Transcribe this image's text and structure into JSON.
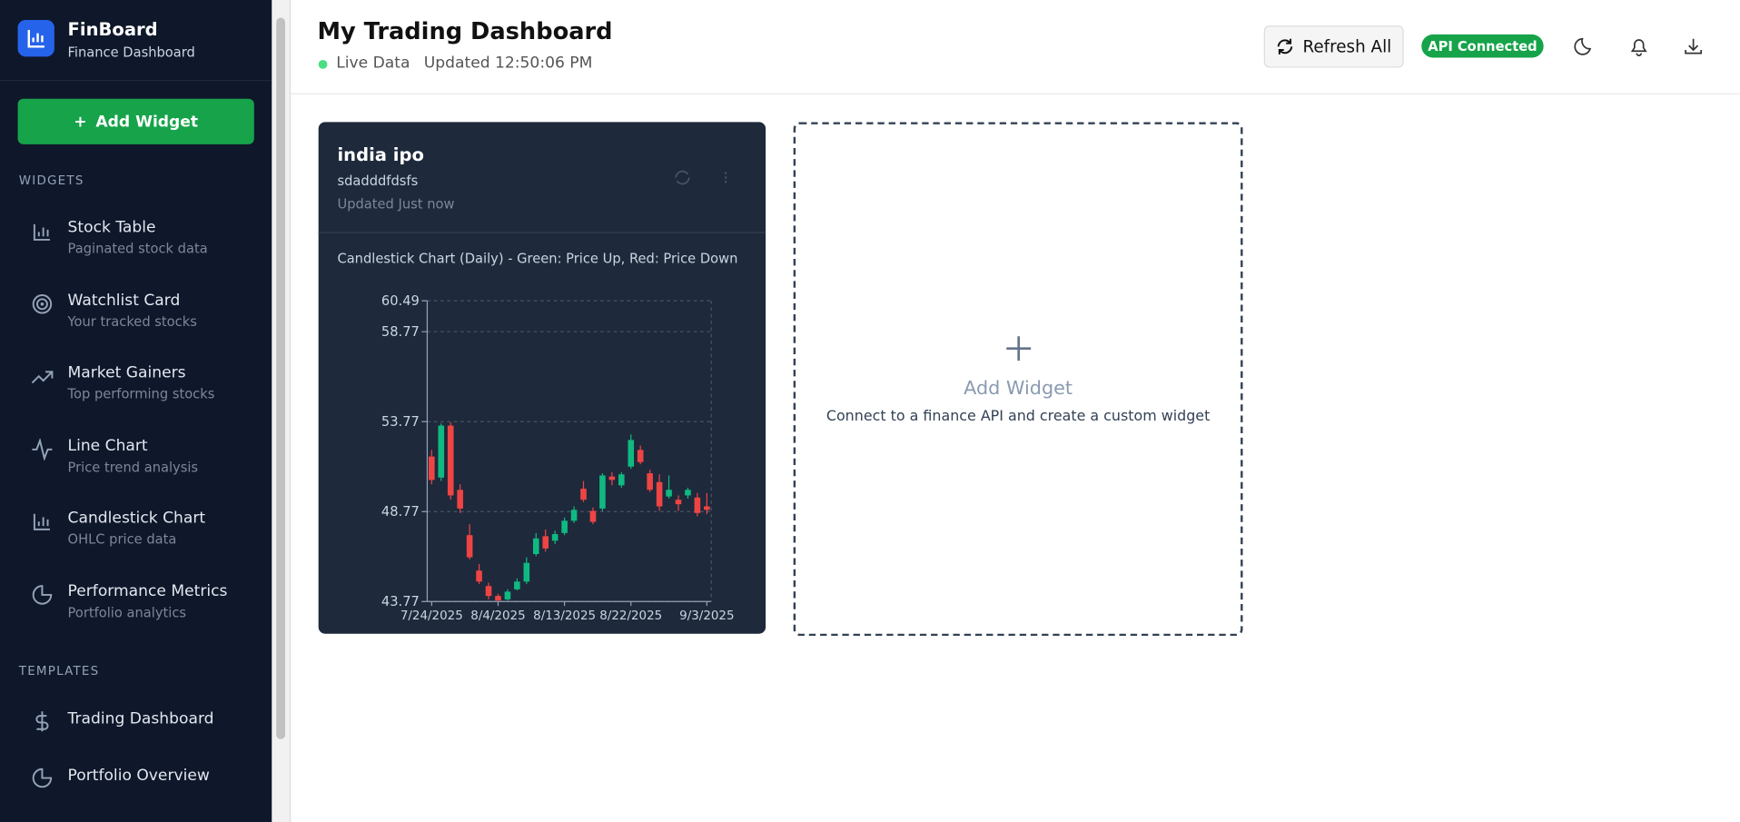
{
  "sidebar": {
    "brand": "FinBoard",
    "tagline": "Finance Dashboard",
    "add_button": "Add Widget",
    "widgets_heading": "WIDGETS",
    "widgets": [
      {
        "title": "Stock Table",
        "subtitle": "Paginated stock data"
      },
      {
        "title": "Watchlist Card",
        "subtitle": "Your tracked stocks"
      },
      {
        "title": "Market Gainers",
        "subtitle": "Top performing stocks"
      },
      {
        "title": "Line Chart",
        "subtitle": "Price trend analysis"
      },
      {
        "title": "Candlestick Chart",
        "subtitle": "OHLC price data"
      },
      {
        "title": "Performance Metrics",
        "subtitle": "Portfolio analytics"
      }
    ],
    "templates_heading": "TEMPLATES",
    "templates": [
      "Trading Dashboard",
      "Portfolio Overview"
    ]
  },
  "header": {
    "title": "My Trading Dashboard",
    "status": "Live Data",
    "updated": "Updated 12:50:06 PM",
    "refresh": "Refresh All",
    "api": "API Connected"
  },
  "widget": {
    "title": "india ipo",
    "description": "sdadddfdsfs",
    "updated": "Updated Just now",
    "chart_data": {
      "type": "candlestick",
      "title": "Candlestick Chart (Daily) - Green: Price Up, Red: Price Down",
      "categories": [
        "7/24/2025",
        null,
        null,
        null,
        null,
        null,
        null,
        "8/4/2025",
        null,
        null,
        null,
        null,
        null,
        null,
        "8/13/2025",
        null,
        null,
        null,
        null,
        null,
        null,
        "8/22/2025",
        null,
        null,
        null,
        null,
        null,
        null,
        null,
        "9/3/2025"
      ],
      "open": [
        51.83,
        50.66,
        53.55,
        49.98,
        47.46,
        45.49,
        44.63,
        44.08,
        43.89,
        44.45,
        44.88,
        46.41,
        47.4,
        47.15,
        47.58,
        48.26,
        50.04,
        48.81,
        48.94,
        50.72,
        50.23,
        51.27,
        52.2,
        50.9,
        50.41,
        49.61,
        49.43,
        49.67,
        49.55,
        49.06
      ],
      "high": [
        52.2,
        53.67,
        53.73,
        50.29,
        48.07,
        45.86,
        44.82,
        44.2,
        44.45,
        45.06,
        46.23,
        47.58,
        47.77,
        47.71,
        48.44,
        49.06,
        50.47,
        49.0,
        50.9,
        50.96,
        50.96,
        53.06,
        52.44,
        51.09,
        50.84,
        50.78,
        49.67,
        50.1,
        49.8,
        49.8
      ],
      "low": [
        50.29,
        50.47,
        49.43,
        48.69,
        46.11,
        44.75,
        43.89,
        43.77,
        43.83,
        44.39,
        44.75,
        46.29,
        46.54,
        46.97,
        47.46,
        48.14,
        49.3,
        48.07,
        48.81,
        50.23,
        50.1,
        51.15,
        51.4,
        49.86,
        48.81,
        49.49,
        48.81,
        49.49,
        48.51,
        48.63
      ],
      "close": [
        50.53,
        53.55,
        49.67,
        48.94,
        46.23,
        44.88,
        44.08,
        43.83,
        44.32,
        44.88,
        45.92,
        47.28,
        46.72,
        47.52,
        48.26,
        48.87,
        49.43,
        48.2,
        50.78,
        50.53,
        50.84,
        52.75,
        51.52,
        49.98,
        49.06,
        49.98,
        49.18,
        49.98,
        48.69,
        48.87
      ],
      "up_color": "#10b981",
      "down_color": "#ef4444",
      "ylim": [
        43.77,
        60.49
      ],
      "yticks": [
        43.77,
        48.77,
        53.77,
        58.77,
        60.49
      ],
      "grid": true
    }
  },
  "placeholder": {
    "title": "Add Widget",
    "description": "Connect to a finance API and create a custom widget"
  }
}
